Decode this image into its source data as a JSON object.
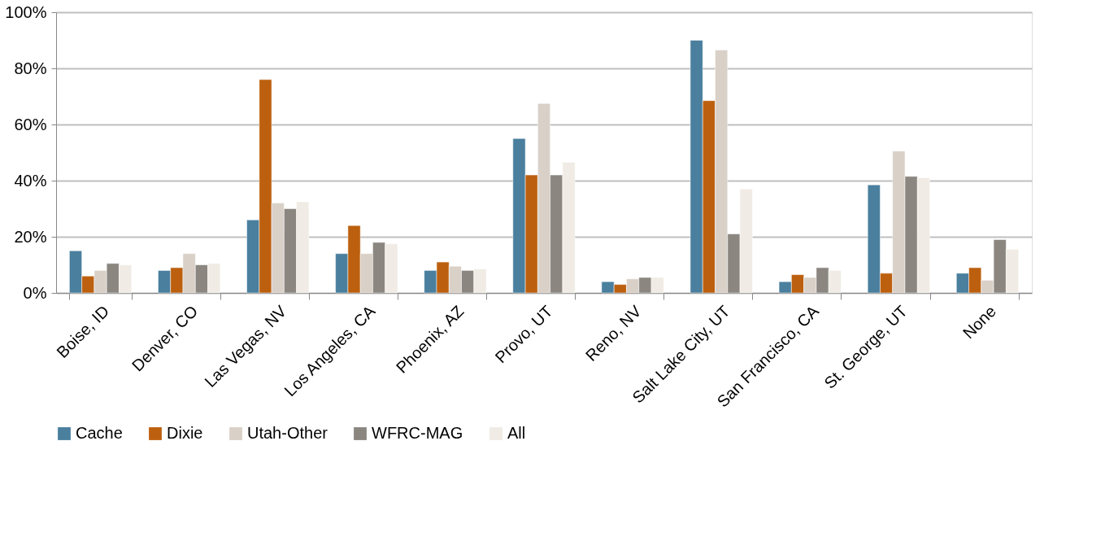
{
  "chart_data": {
    "type": "bar",
    "categories": [
      "Boise, ID",
      "Denver, CO",
      "Las Vegas, NV",
      "Los Angeles, CA",
      "Phoenix, AZ",
      "Provo, UT",
      "Reno, NV",
      "Salt Lake City, UT",
      "San Francisco, CA",
      "St. George, UT",
      "None"
    ],
    "series": [
      {
        "name": "Cache",
        "color": "#4a7f9e",
        "values": [
          15,
          8,
          26,
          14,
          8,
          55,
          4,
          90,
          4,
          38.5,
          7
        ]
      },
      {
        "name": "Dixie",
        "color": "#bc600f",
        "values": [
          6,
          9,
          76,
          24,
          11,
          42,
          3,
          68.5,
          6.5,
          7,
          9
        ]
      },
      {
        "name": "Utah-Other",
        "color": "#d9d0c7",
        "values": [
          8,
          14,
          32,
          14,
          9.5,
          67.5,
          5,
          86.5,
          5.5,
          50.5,
          4.5
        ]
      },
      {
        "name": "WFRC-MAG",
        "color": "#8b8680",
        "values": [
          10.5,
          10,
          30,
          18,
          8,
          42,
          5.5,
          21,
          9,
          41.5,
          19
        ]
      },
      {
        "name": "All",
        "color": "#f0ebe4",
        "values": [
          10,
          10.5,
          32.5,
          17.5,
          8.5,
          46.5,
          5.5,
          37,
          8,
          41,
          15.5
        ]
      }
    ],
    "ylim": [
      0,
      100
    ],
    "yticks": [
      {
        "value": 0,
        "label": "0%"
      },
      {
        "value": 20,
        "label": "20%"
      },
      {
        "value": 40,
        "label": "40%"
      },
      {
        "value": 60,
        "label": "60%"
      },
      {
        "value": 80,
        "label": "80%"
      },
      {
        "value": 100,
        "label": "100%"
      }
    ],
    "grid": "y",
    "legend": "bottom"
  }
}
